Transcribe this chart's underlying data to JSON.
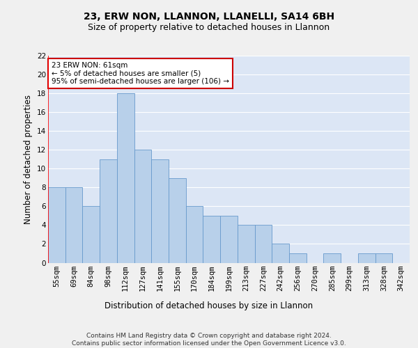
{
  "title": "23, ERW NON, LLANNON, LLANELLI, SA14 6BH",
  "subtitle": "Size of property relative to detached houses in Llannon",
  "xlabel": "Distribution of detached houses by size in Llannon",
  "ylabel": "Number of detached properties",
  "categories": [
    "55sqm",
    "69sqm",
    "84sqm",
    "98sqm",
    "112sqm",
    "127sqm",
    "141sqm",
    "155sqm",
    "170sqm",
    "184sqm",
    "199sqm",
    "213sqm",
    "227sqm",
    "242sqm",
    "256sqm",
    "270sqm",
    "285sqm",
    "299sqm",
    "313sqm",
    "328sqm",
    "342sqm"
  ],
  "values": [
    8,
    8,
    6,
    11,
    18,
    12,
    11,
    9,
    6,
    5,
    5,
    4,
    4,
    2,
    1,
    0,
    1,
    0,
    1,
    1,
    0
  ],
  "bar_color": "#b8d0ea",
  "bar_edge_color": "#6699cc",
  "background_color": "#dce6f5",
  "grid_color": "#ffffff",
  "annotation_text": "23 ERW NON: 61sqm\n← 5% of detached houses are smaller (5)\n95% of semi-detached houses are larger (106) →",
  "annotation_box_color": "#ffffff",
  "annotation_box_edge_color": "#cc0000",
  "ylim": [
    0,
    22
  ],
  "yticks": [
    0,
    2,
    4,
    6,
    8,
    10,
    12,
    14,
    16,
    18,
    20,
    22
  ],
  "footer": "Contains HM Land Registry data © Crown copyright and database right 2024.\nContains public sector information licensed under the Open Government Licence v3.0.",
  "title_fontsize": 10,
  "subtitle_fontsize": 9,
  "axis_label_fontsize": 8.5,
  "tick_fontsize": 7.5,
  "footer_fontsize": 6.5,
  "red_line_index": 0
}
